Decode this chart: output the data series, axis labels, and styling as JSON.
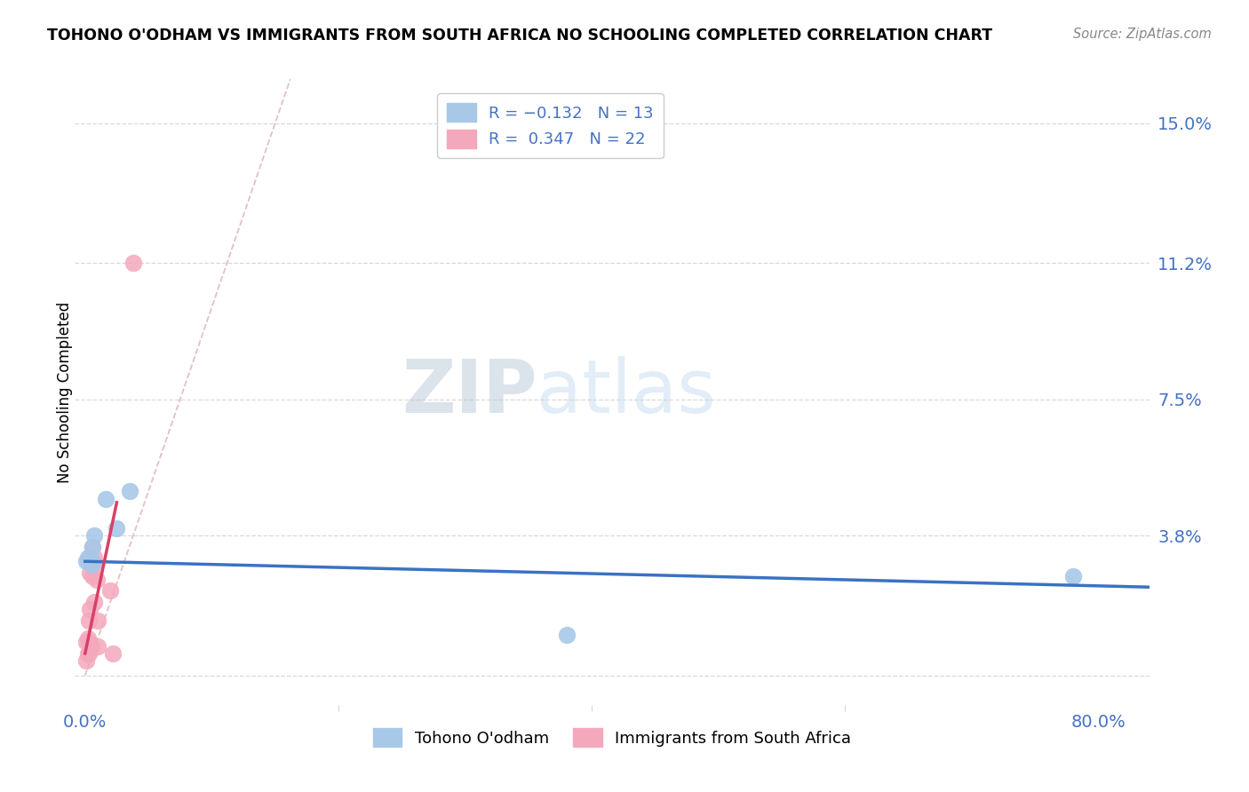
{
  "title": "TOHONO O'ODHAM VS IMMIGRANTS FROM SOUTH AFRICA NO SCHOOLING COMPLETED CORRELATION CHART",
  "source": "Source: ZipAtlas.com",
  "ylabel_label": "No Schooling Completed",
  "ylabel_ticks": [
    0.0,
    0.038,
    0.075,
    0.112,
    0.15
  ],
  "ylabel_tick_labels": [
    "",
    "3.8%",
    "7.5%",
    "11.2%",
    "15.0%"
  ],
  "xmin": -0.008,
  "xmax": 0.84,
  "ymin": -0.008,
  "ymax": 0.162,
  "blue_R": -0.132,
  "blue_N": 13,
  "pink_R": 0.347,
  "pink_N": 22,
  "blue_color": "#a8c8e8",
  "pink_color": "#f4a8bc",
  "blue_line_color": "#3a72c4",
  "pink_line_color": "#d84068",
  "diagonal_color": "#e0b8c0",
  "watermark_zip": "ZIP",
  "watermark_atlas": "atlas",
  "background_color": "#ffffff",
  "grid_color": "#d8d8d8",
  "blue_scatter_x": [
    0.001,
    0.002,
    0.003,
    0.004,
    0.005,
    0.005,
    0.006,
    0.007,
    0.016,
    0.025,
    0.035,
    0.38,
    0.78
  ],
  "blue_scatter_y": [
    0.031,
    0.032,
    0.031,
    0.032,
    0.03,
    0.031,
    0.035,
    0.038,
    0.048,
    0.04,
    0.05,
    0.011,
    0.027
  ],
  "pink_scatter_x": [
    0.001,
    0.001,
    0.002,
    0.002,
    0.003,
    0.003,
    0.003,
    0.004,
    0.004,
    0.005,
    0.005,
    0.006,
    0.006,
    0.007,
    0.007,
    0.008,
    0.009,
    0.01,
    0.01,
    0.02,
    0.022,
    0.038
  ],
  "pink_scatter_y": [
    0.004,
    0.009,
    0.006,
    0.01,
    0.006,
    0.009,
    0.015,
    0.018,
    0.028,
    0.008,
    0.03,
    0.027,
    0.035,
    0.02,
    0.032,
    0.03,
    0.026,
    0.015,
    0.008,
    0.023,
    0.006,
    0.112
  ],
  "blue_line_x": [
    0.0,
    0.84
  ],
  "blue_line_y": [
    0.031,
    0.024
  ],
  "pink_line_x": [
    0.0,
    0.025
  ],
  "pink_line_y": [
    0.006,
    0.047
  ]
}
